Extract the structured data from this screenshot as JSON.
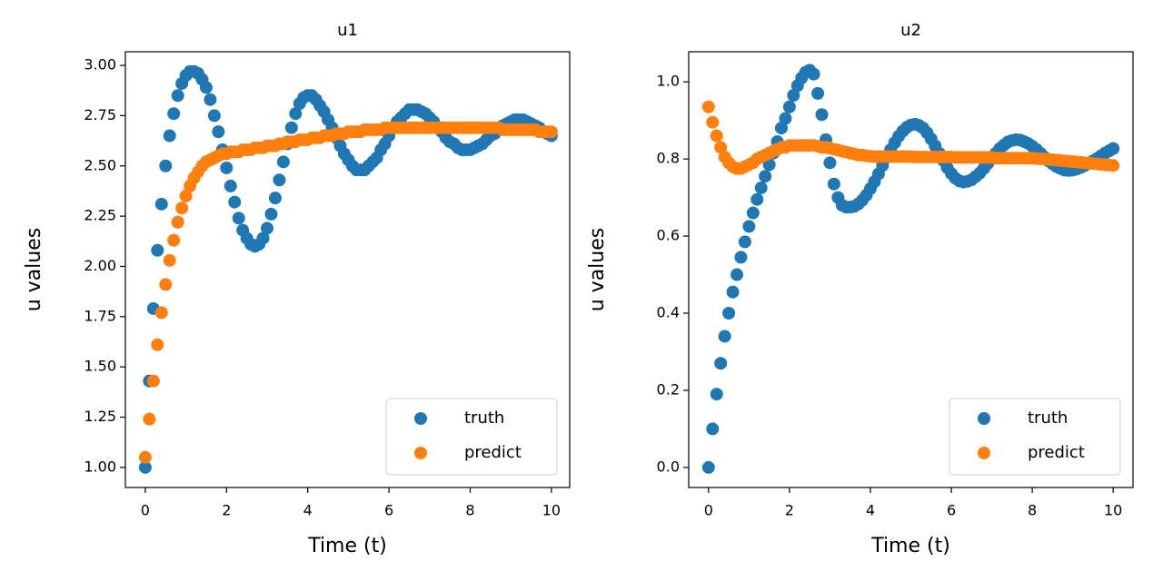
{
  "chart_data": [
    {
      "type": "scatter",
      "title": "u1",
      "x_label": "Time (t)",
      "y_label": "u values",
      "legend": "lower right",
      "xlim": [
        -0.49,
        10.45
      ],
      "ylim": [
        0.9,
        3.068
      ],
      "xticks": [
        0,
        2,
        4,
        6,
        8,
        10
      ],
      "yticks": [
        {
          "value": 1,
          "label": "1.00"
        },
        {
          "value": 1.25,
          "label": "1.25"
        },
        {
          "value": 1.5,
          "label": "1.50"
        },
        {
          "value": 1.75,
          "label": "1.75"
        },
        {
          "value": 2,
          "label": "2.00"
        },
        {
          "value": 2.25,
          "label": "2.25"
        },
        {
          "value": 2.5,
          "label": "2.50"
        },
        {
          "value": 2.75,
          "label": "2.75"
        },
        {
          "value": 3,
          "label": "3.00"
        }
      ],
      "x": [
        0,
        0.1,
        0.2,
        0.3,
        0.4,
        0.5,
        0.6,
        0.7,
        0.8,
        0.9,
        1,
        1.1,
        1.2,
        1.3,
        1.4,
        1.5,
        1.6,
        1.7,
        1.8,
        1.9,
        2,
        2.1,
        2.2,
        2.3,
        2.4,
        2.5,
        2.6,
        2.7,
        2.8,
        2.9,
        3,
        3.1,
        3.2,
        3.3,
        3.4,
        3.5,
        3.6,
        3.7,
        3.8,
        3.9,
        4,
        4.1,
        4.2,
        4.3,
        4.4,
        4.5,
        4.6,
        4.7,
        4.8,
        4.9,
        5,
        5.1,
        5.2,
        5.3,
        5.4,
        5.5,
        5.6,
        5.7,
        5.8,
        5.9,
        6,
        6.1,
        6.2,
        6.3,
        6.4,
        6.5,
        6.6,
        6.7,
        6.8,
        6.9,
        7,
        7.1,
        7.2,
        7.3,
        7.4,
        7.5,
        7.6,
        7.7,
        7.8,
        7.9,
        8,
        8.1,
        8.2,
        8.3,
        8.4,
        8.5,
        8.6,
        8.7,
        8.8,
        8.9,
        9,
        9.1,
        9.2,
        9.3,
        9.4,
        9.5,
        9.6,
        9.7,
        9.8,
        9.9,
        10
      ],
      "series": [
        {
          "name": "truth",
          "color": "#1f77b4",
          "values": [
            1.0,
            1.43,
            1.79,
            2.08,
            2.31,
            2.5,
            2.65,
            2.76,
            2.85,
            2.91,
            2.95,
            2.97,
            2.97,
            2.96,
            2.93,
            2.89,
            2.83,
            2.75,
            2.67,
            2.58,
            2.49,
            2.4,
            2.32,
            2.24,
            2.18,
            2.14,
            2.11,
            2.1,
            2.11,
            2.14,
            2.19,
            2.26,
            2.34,
            2.43,
            2.52,
            2.61,
            2.69,
            2.76,
            2.81,
            2.84,
            2.85,
            2.85,
            2.83,
            2.8,
            2.77,
            2.73,
            2.69,
            2.64,
            2.6,
            2.56,
            2.53,
            2.5,
            2.48,
            2.48,
            2.48,
            2.5,
            2.52,
            2.54,
            2.58,
            2.61,
            2.65,
            2.69,
            2.72,
            2.74,
            2.76,
            2.78,
            2.78,
            2.78,
            2.77,
            2.76,
            2.74,
            2.72,
            2.69,
            2.67,
            2.64,
            2.62,
            2.61,
            2.59,
            2.58,
            2.58,
            2.58,
            2.59,
            2.6,
            2.61,
            2.63,
            2.65,
            2.66,
            2.68,
            2.7,
            2.71,
            2.72,
            2.73,
            2.73,
            2.73,
            2.72,
            2.71,
            2.7,
            2.69,
            2.67,
            2.66,
            2.65
          ]
        },
        {
          "name": "predict",
          "color": "#ff7f0e",
          "values": [
            1.05,
            1.24,
            1.43,
            1.61,
            1.77,
            1.91,
            2.03,
            2.13,
            2.22,
            2.29,
            2.35,
            2.4,
            2.44,
            2.47,
            2.5,
            2.52,
            2.53,
            2.54,
            2.55,
            2.56,
            2.56,
            2.57,
            2.57,
            2.57,
            2.58,
            2.58,
            2.58,
            2.59,
            2.59,
            2.59,
            2.6,
            2.6,
            2.6,
            2.61,
            2.61,
            2.62,
            2.62,
            2.62,
            2.63,
            2.63,
            2.63,
            2.64,
            2.64,
            2.64,
            2.65,
            2.65,
            2.65,
            2.66,
            2.66,
            2.66,
            2.67,
            2.67,
            2.67,
            2.67,
            2.68,
            2.68,
            2.68,
            2.68,
            2.68,
            2.69,
            2.69,
            2.69,
            2.69,
            2.69,
            2.69,
            2.69,
            2.69,
            2.69,
            2.69,
            2.69,
            2.69,
            2.69,
            2.69,
            2.69,
            2.69,
            2.69,
            2.69,
            2.69,
            2.69,
            2.69,
            2.69,
            2.69,
            2.69,
            2.69,
            2.69,
            2.69,
            2.69,
            2.69,
            2.68,
            2.68,
            2.68,
            2.68,
            2.68,
            2.68,
            2.68,
            2.68,
            2.68,
            2.67,
            2.67,
            2.67,
            2.67
          ]
        }
      ]
    },
    {
      "type": "scatter",
      "title": "u2",
      "x_label": "Time (t)",
      "y_label": "u values",
      "legend": "lower right",
      "xlim": [
        -0.49,
        10.49
      ],
      "ylim": [
        -0.052,
        1.078
      ],
      "xticks": [
        0,
        2,
        4,
        6,
        8,
        10
      ],
      "yticks": [
        {
          "value": 0,
          "label": "0.0"
        },
        0.2,
        0.4,
        0.6,
        0.8,
        {
          "value": 1,
          "label": "1.0"
        }
      ],
      "x": [
        0,
        0.1,
        0.2,
        0.3,
        0.4,
        0.5,
        0.6,
        0.7,
        0.8,
        0.9,
        1,
        1.1,
        1.2,
        1.3,
        1.4,
        1.5,
        1.6,
        1.7,
        1.8,
        1.9,
        2,
        2.1,
        2.2,
        2.3,
        2.4,
        2.5,
        2.6,
        2.7,
        2.8,
        2.9,
        3,
        3.1,
        3.2,
        3.3,
        3.4,
        3.5,
        3.6,
        3.7,
        3.8,
        3.9,
        4,
        4.1,
        4.2,
        4.3,
        4.4,
        4.5,
        4.6,
        4.7,
        4.8,
        4.9,
        5,
        5.1,
        5.2,
        5.3,
        5.4,
        5.5,
        5.6,
        5.7,
        5.8,
        5.9,
        6,
        6.1,
        6.2,
        6.3,
        6.4,
        6.5,
        6.6,
        6.7,
        6.8,
        6.9,
        7,
        7.1,
        7.2,
        7.3,
        7.4,
        7.5,
        7.6,
        7.7,
        7.8,
        7.9,
        8,
        8.1,
        8.2,
        8.3,
        8.4,
        8.5,
        8.6,
        8.7,
        8.8,
        8.9,
        9,
        9.1,
        9.2,
        9.3,
        9.4,
        9.5,
        9.6,
        9.7,
        9.8,
        9.9,
        10
      ],
      "series": [
        {
          "name": "truth",
          "color": "#1f77b4",
          "values": [
            0,
            0.1,
            0.19,
            0.27,
            0.34,
            0.4,
            0.455,
            0.5,
            0.545,
            0.585,
            0.625,
            0.66,
            0.695,
            0.725,
            0.755,
            0.785,
            0.815,
            0.845,
            0.88,
            0.905,
            0.935,
            0.965,
            0.99,
            1.01,
            1.025,
            1.03,
            1.02,
            0.97,
            0.915,
            0.85,
            0.79,
            0.735,
            0.7,
            0.68,
            0.675,
            0.675,
            0.677,
            0.683,
            0.693,
            0.706,
            0.723,
            0.741,
            0.761,
            0.783,
            0.804,
            0.824,
            0.842,
            0.859,
            0.872,
            0.882,
            0.888,
            0.89,
            0.887,
            0.88,
            0.868,
            0.852,
            0.834,
            0.815,
            0.796,
            0.777,
            0.762,
            0.75,
            0.743,
            0.74,
            0.742,
            0.746,
            0.754,
            0.763,
            0.775,
            0.788,
            0.802,
            0.815,
            0.827,
            0.836,
            0.844,
            0.848,
            0.85,
            0.849,
            0.845,
            0.84,
            0.833,
            0.825,
            0.815,
            0.805,
            0.795,
            0.787,
            0.78,
            0.775,
            0.771,
            0.77,
            0.771,
            0.774,
            0.778,
            0.783,
            0.789,
            0.795,
            0.801,
            0.808,
            0.815,
            0.821,
            0.827
          ]
        },
        {
          "name": "predict",
          "color": "#ff7f0e",
          "values": [
            0.935,
            0.895,
            0.86,
            0.83,
            0.805,
            0.79,
            0.78,
            0.775,
            0.775,
            0.78,
            0.785,
            0.79,
            0.8,
            0.805,
            0.81,
            0.815,
            0.82,
            0.825,
            0.83,
            0.83,
            0.835,
            0.835,
            0.835,
            0.835,
            0.835,
            0.835,
            0.835,
            0.833,
            0.83,
            0.83,
            0.828,
            0.825,
            0.823,
            0.82,
            0.818,
            0.815,
            0.813,
            0.81,
            0.81,
            0.808,
            0.807,
            0.806,
            0.806,
            0.806,
            0.806,
            0.806,
            0.806,
            0.806,
            0.806,
            0.806,
            0.806,
            0.805,
            0.805,
            0.805,
            0.805,
            0.805,
            0.805,
            0.805,
            0.805,
            0.805,
            0.805,
            0.804,
            0.804,
            0.804,
            0.804,
            0.804,
            0.804,
            0.804,
            0.804,
            0.804,
            0.804,
            0.802,
            0.802,
            0.802,
            0.802,
            0.802,
            0.802,
            0.802,
            0.802,
            0.802,
            0.802,
            0.801,
            0.8,
            0.8,
            0.799,
            0.798,
            0.797,
            0.796,
            0.795,
            0.794,
            0.793,
            0.792,
            0.791,
            0.79,
            0.789,
            0.788,
            0.787,
            0.786,
            0.785,
            0.784,
            0.783
          ]
        }
      ]
    }
  ]
}
